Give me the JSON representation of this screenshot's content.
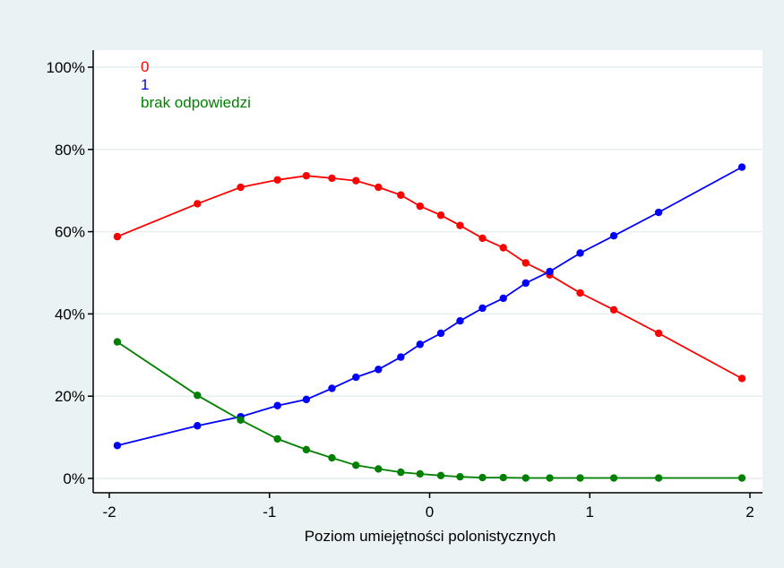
{
  "chart_data": {
    "type": "line",
    "title": "",
    "xlabel": "Poziom umiejętności polonistycznych",
    "ylabel": "",
    "xlim": [
      -2,
      2
    ],
    "ylim": [
      0,
      100
    ],
    "xticks": [
      -2,
      -1,
      0,
      1,
      2
    ],
    "xtick_labels": [
      "-2",
      "-1",
      "0",
      "1",
      "2"
    ],
    "yticks": [
      0,
      20,
      40,
      60,
      80,
      100
    ],
    "ytick_labels": [
      "0%",
      "20%",
      "40%",
      "60%",
      "80%",
      "100%"
    ],
    "grid": "horizontal",
    "legend_position": "top-left",
    "x": [
      -1.95,
      -1.45,
      -1.18,
      -0.95,
      -0.77,
      -0.61,
      -0.46,
      -0.32,
      -0.18,
      -0.06,
      0.07,
      0.19,
      0.33,
      0.46,
      0.6,
      0.75,
      0.94,
      1.15,
      1.43,
      1.95
    ],
    "series": [
      {
        "name": "0",
        "color": "#ff0000",
        "values": [
          58.8,
          66.8,
          70.8,
          72.6,
          73.6,
          73.0,
          72.4,
          70.8,
          68.9,
          66.2,
          64.0,
          61.5,
          58.4,
          56.1,
          52.4,
          49.5,
          45.1,
          41.0,
          35.3,
          24.3
        ]
      },
      {
        "name": "1",
        "color": "#0000ff",
        "values": [
          8.0,
          12.8,
          15.0,
          17.7,
          19.2,
          21.9,
          24.6,
          26.5,
          29.5,
          32.6,
          35.3,
          38.3,
          41.4,
          43.8,
          47.5,
          50.3,
          54.8,
          59.0,
          64.7,
          75.7
        ]
      },
      {
        "name": "brak odpowiedzi",
        "color": "#008000",
        "values": [
          33.2,
          20.2,
          14.2,
          9.6,
          7.0,
          5.0,
          3.2,
          2.3,
          1.5,
          1.1,
          0.7,
          0.4,
          0.2,
          0.2,
          0.1,
          0.1,
          0.1,
          0.1,
          0.1,
          0.1
        ]
      }
    ]
  }
}
